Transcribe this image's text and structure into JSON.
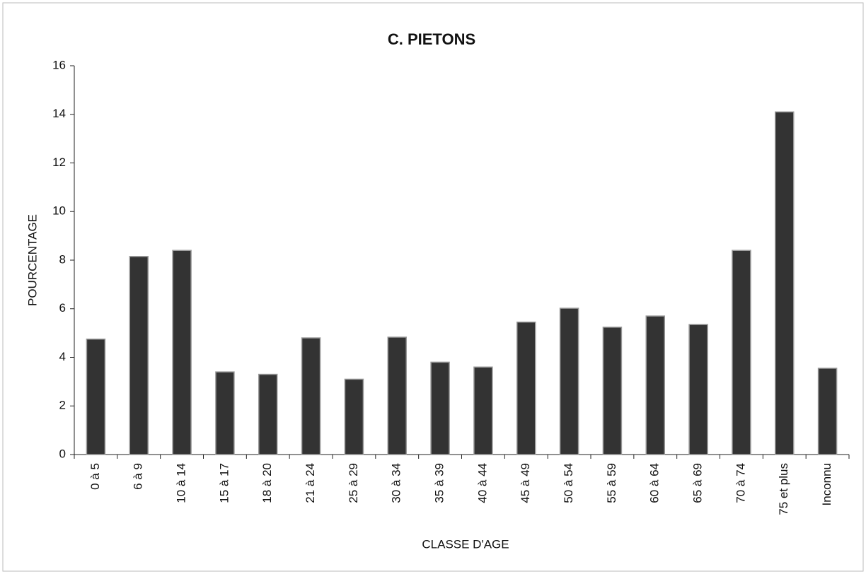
{
  "chart_data": {
    "type": "bar",
    "title": "C. PIETONS",
    "x_label": "CLASSE D'AGE",
    "y_label": "POURCENTAGE",
    "categories": [
      "0 à 5",
      "6 à 9",
      "10 à 14",
      "15 à 17",
      "18 à 20",
      "21 à 24",
      "25 à 29",
      "30 à 34",
      "35 à 39",
      "40 à 44",
      "45 à 49",
      "50 à 54",
      "55 à 59",
      "60 à 64",
      "65 à 69",
      "70 à 74",
      "75 et plus",
      "Inconnu"
    ],
    "values": [
      4.75,
      8.15,
      8.4,
      3.4,
      3.3,
      4.8,
      3.1,
      4.83,
      3.8,
      3.6,
      5.45,
      6.02,
      5.24,
      5.7,
      5.35,
      8.4,
      14.1,
      3.55
    ],
    "color": "#333333",
    "ylim": [
      0,
      16
    ],
    "yticks": [
      0,
      2,
      4,
      6,
      8,
      10,
      12,
      14,
      16
    ],
    "grid": false
  }
}
